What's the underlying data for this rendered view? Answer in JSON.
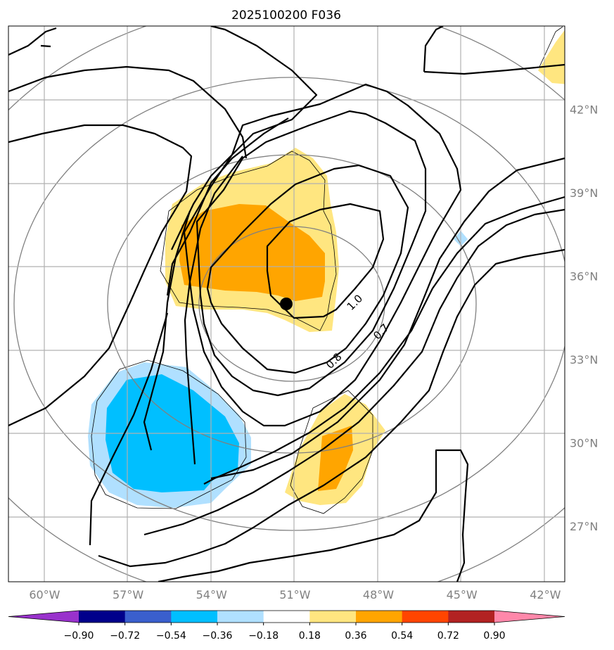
{
  "chart_data": {
    "type": "contour-map",
    "title": "2025100200 F036",
    "x_ticks": [
      "60°W",
      "57°W",
      "54°W",
      "51°W",
      "48°W",
      "45°W",
      "42°W"
    ],
    "y_ticks": [
      "42°N",
      "39°N",
      "36°N",
      "33°N",
      "30°N",
      "27°N"
    ],
    "xlim_lon": [
      -61.3,
      -41.3
    ],
    "ylim_lat": [
      25.0,
      45.0
    ],
    "grid": true,
    "contour_labels": [
      {
        "text": "1.0",
        "lon": -48.85,
        "lat": 35.05
      },
      {
        "text": "0.7",
        "lon": -47.9,
        "lat": 34.0
      },
      {
        "text": "0.8",
        "lon": -49.6,
        "lat": 32.95
      }
    ],
    "center_marker": {
      "lon": -51.25,
      "lat": 35.2
    },
    "colorbar": {
      "ticks": [
        "−0.90",
        "−0.72",
        "−0.54",
        "−0.36",
        "−0.18",
        "0.18",
        "0.36",
        "0.54",
        "0.72",
        "0.90"
      ],
      "colors": [
        "#9932cc",
        "#00008b",
        "#3a5fcd",
        "#00bfff",
        "#b0e0ff",
        "#ffffff",
        "#ffe680",
        "#ffa500",
        "#ff4500",
        "#b22222",
        "#ff88aa"
      ]
    }
  }
}
